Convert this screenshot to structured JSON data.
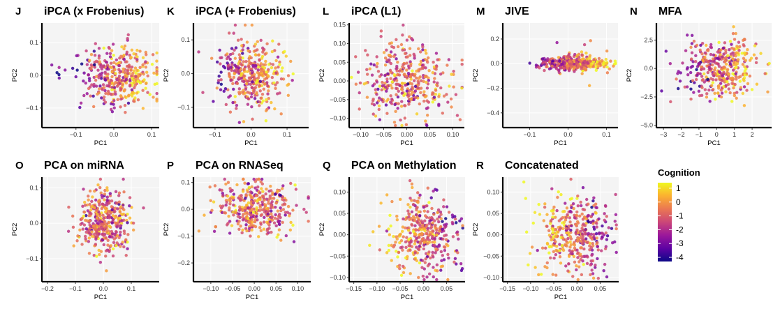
{
  "colors": {
    "panel_bg": "#f4f4f4",
    "grid": "#ffffff",
    "axis": "#000000",
    "colorscale": [
      "#0d0887",
      "#5b02a3",
      "#9a179b",
      "#cb4678",
      "#eb7852",
      "#fbb32f",
      "#eff821"
    ]
  },
  "legend": {
    "title": "Cognition",
    "labels": [
      "1",
      "0",
      "-1",
      "-2",
      "-3",
      "-4"
    ],
    "range": [
      -4.3,
      1.4
    ],
    "placement": "right"
  },
  "chart_data": [
    {
      "type": "scatter",
      "letter": "J",
      "title": "iPCA (x Frobenius)",
      "xlabel": "PC1",
      "ylabel": "PC2",
      "xlim": [
        -0.19,
        0.12
      ],
      "ylim": [
        -0.16,
        0.16
      ],
      "xticks": [
        -0.1,
        0.0,
        0.1
      ],
      "xtick_labels": [
        "−0.1",
        "0.0",
        "0.1"
      ],
      "yticks": [
        -0.1,
        0.0,
        0.1
      ],
      "ytick_labels": [
        "−0.1",
        "0.0",
        "0.1"
      ],
      "cloud": {
        "cx": 0.01,
        "cy": 0.0,
        "sx": 0.05,
        "sy": 0.045,
        "n": 380,
        "skew": 0.03
      }
    },
    {
      "type": "scatter",
      "letter": "K",
      "title": "iPCA (+ Frobenius)",
      "xlabel": "PC1",
      "ylabel": "PC2",
      "xlim": [
        -0.16,
        0.16
      ],
      "ylim": [
        -0.16,
        0.15
      ],
      "xticks": [
        -0.1,
        0.0,
        0.1
      ],
      "xtick_labels": [
        "−0.1",
        "0.0",
        "0.1"
      ],
      "yticks": [
        -0.1,
        0.0,
        0.1
      ],
      "ytick_labels": [
        "−0.1",
        "0.0",
        "0.1"
      ],
      "cloud": {
        "cx": 0.0,
        "cy": 0.0,
        "sx": 0.05,
        "sy": 0.05,
        "n": 380,
        "skew": 0.02
      }
    },
    {
      "type": "scatter",
      "letter": "L",
      "title": "iPCA (L1)",
      "xlabel": "PC1",
      "ylabel": "PC2",
      "xlim": [
        -0.125,
        0.125
      ],
      "ylim": [
        -0.125,
        0.155
      ],
      "xticks": [
        -0.1,
        -0.05,
        0.0,
        0.05,
        0.1
      ],
      "xtick_labels": [
        "−0.10",
        "−0.05",
        "0.00",
        "0.05",
        "0.10"
      ],
      "yticks": [
        -0.1,
        -0.05,
        0.0,
        0.05,
        0.1,
        0.15
      ],
      "ytick_labels": [
        "−0.10",
        "−0.05",
        "0.00",
        "0.05",
        "0.10",
        "0.15"
      ],
      "cloud": {
        "cx": 0.0,
        "cy": 0.0,
        "sx": 0.045,
        "sy": 0.05,
        "n": 380,
        "skew": 0.0
      }
    },
    {
      "type": "scatter",
      "letter": "M",
      "title": "JIVE",
      "xlabel": "PC1",
      "ylabel": "PC2",
      "xlim": [
        -0.17,
        0.13
      ],
      "ylim": [
        -0.52,
        0.33
      ],
      "xticks": [
        -0.1,
        0.0,
        0.1
      ],
      "xtick_labels": [
        "−0.1",
        "0.0",
        "0.1"
      ],
      "yticks": [
        -0.4,
        -0.2,
        0.0,
        0.2
      ],
      "ytick_labels": [
        "−0.4",
        "−0.2",
        "0.0",
        "0.2"
      ],
      "cloud": {
        "cx": 0.01,
        "cy": 0.0,
        "sx": 0.045,
        "sy": 0.035,
        "n": 380,
        "skew": 0.03
      }
    },
    {
      "type": "scatter",
      "letter": "N",
      "title": "MFA",
      "xlabel": "PC1",
      "ylabel": "PC2",
      "xlim": [
        -3.4,
        3.1
      ],
      "ylim": [
        -5.2,
        4.0
      ],
      "xticks": [
        -3,
        -2,
        -1,
        0,
        1,
        2
      ],
      "xtick_labels": [
        "−3",
        "−2",
        "−1",
        "0",
        "1",
        "2"
      ],
      "yticks": [
        -5.0,
        -2.5,
        0.0,
        2.5
      ],
      "ytick_labels": [
        "−5.0",
        "−2.5",
        "0.0",
        "2.5"
      ],
      "cloud": {
        "cx": 0.2,
        "cy": 0.0,
        "sx": 1.0,
        "sy": 1.3,
        "n": 380,
        "skew": 0.5
      }
    },
    {
      "type": "scatter",
      "letter": "O",
      "title": "PCA on miRNA",
      "xlabel": "PC1",
      "ylabel": "PC2",
      "xlim": [
        -0.22,
        0.2
      ],
      "ylim": [
        -0.165,
        0.13
      ],
      "xticks": [
        -0.2,
        -0.1,
        0.0,
        0.1
      ],
      "xtick_labels": [
        "−0.2",
        "−0.1",
        "0.0",
        "0.1"
      ],
      "yticks": [
        -0.1,
        0.0,
        0.1
      ],
      "ytick_labels": [
        "−0.1",
        "0.0",
        "0.1"
      ],
      "cloud": {
        "cx": 0.0,
        "cy": 0.0,
        "sx": 0.045,
        "sy": 0.045,
        "n": 380,
        "skew": 0.0
      }
    },
    {
      "type": "scatter",
      "letter": "P",
      "title": "PCA on RNASeq",
      "xlabel": "PC1",
      "ylabel": "PC2",
      "xlim": [
        -0.14,
        0.13
      ],
      "ylim": [
        -0.27,
        0.12
      ],
      "xticks": [
        -0.1,
        -0.05,
        0.0,
        0.05,
        0.1
      ],
      "xtick_labels": [
        "−0.10",
        "−0.05",
        "0.00",
        "0.05",
        "0.10"
      ],
      "yticks": [
        -0.2,
        -0.1,
        0.0,
        0.1
      ],
      "ytick_labels": [
        "−0.2",
        "−0.1",
        "0.0",
        "0.1"
      ],
      "cloud": {
        "cx": 0.0,
        "cy": 0.0,
        "sx": 0.045,
        "sy": 0.055,
        "n": 380,
        "skew": 0.0
      }
    },
    {
      "type": "scatter",
      "letter": "Q",
      "title": "PCA on Methylation",
      "xlabel": "PC1",
      "ylabel": "PC2",
      "xlim": [
        -0.16,
        0.09
      ],
      "ylim": [
        -0.11,
        0.135
      ],
      "xticks": [
        -0.15,
        -0.1,
        -0.05,
        0.0,
        0.05
      ],
      "xtick_labels": [
        "−0.15",
        "−0.10",
        "−0.05",
        "0.00",
        "0.05"
      ],
      "yticks": [
        -0.1,
        -0.05,
        0.0,
        0.05,
        0.1
      ],
      "ytick_labels": [
        "−0.10",
        "−0.05",
        "0.00",
        "0.05",
        "0.10"
      ],
      "cloud": {
        "cx": 0.0,
        "cy": 0.0,
        "sx": 0.04,
        "sy": 0.045,
        "n": 380,
        "skew": -0.02
      }
    },
    {
      "type": "scatter",
      "letter": "R",
      "title": "Concatenated",
      "xlabel": "PC1",
      "ylabel": "PC2",
      "xlim": [
        -0.16,
        0.09
      ],
      "ylim": [
        -0.11,
        0.135
      ],
      "xticks": [
        -0.15,
        -0.1,
        -0.05,
        0.0,
        0.05
      ],
      "xtick_labels": [
        "−0.15",
        "−0.10",
        "−0.05",
        "0.00",
        "0.05"
      ],
      "yticks": [
        -0.1,
        -0.05,
        0.0,
        0.05,
        0.1
      ],
      "ytick_labels": [
        "−0.10",
        "−0.05",
        "0.00",
        "0.05",
        "0.10"
      ],
      "cloud": {
        "cx": 0.0,
        "cy": 0.0,
        "sx": 0.04,
        "sy": 0.045,
        "n": 380,
        "skew": -0.02
      }
    }
  ]
}
